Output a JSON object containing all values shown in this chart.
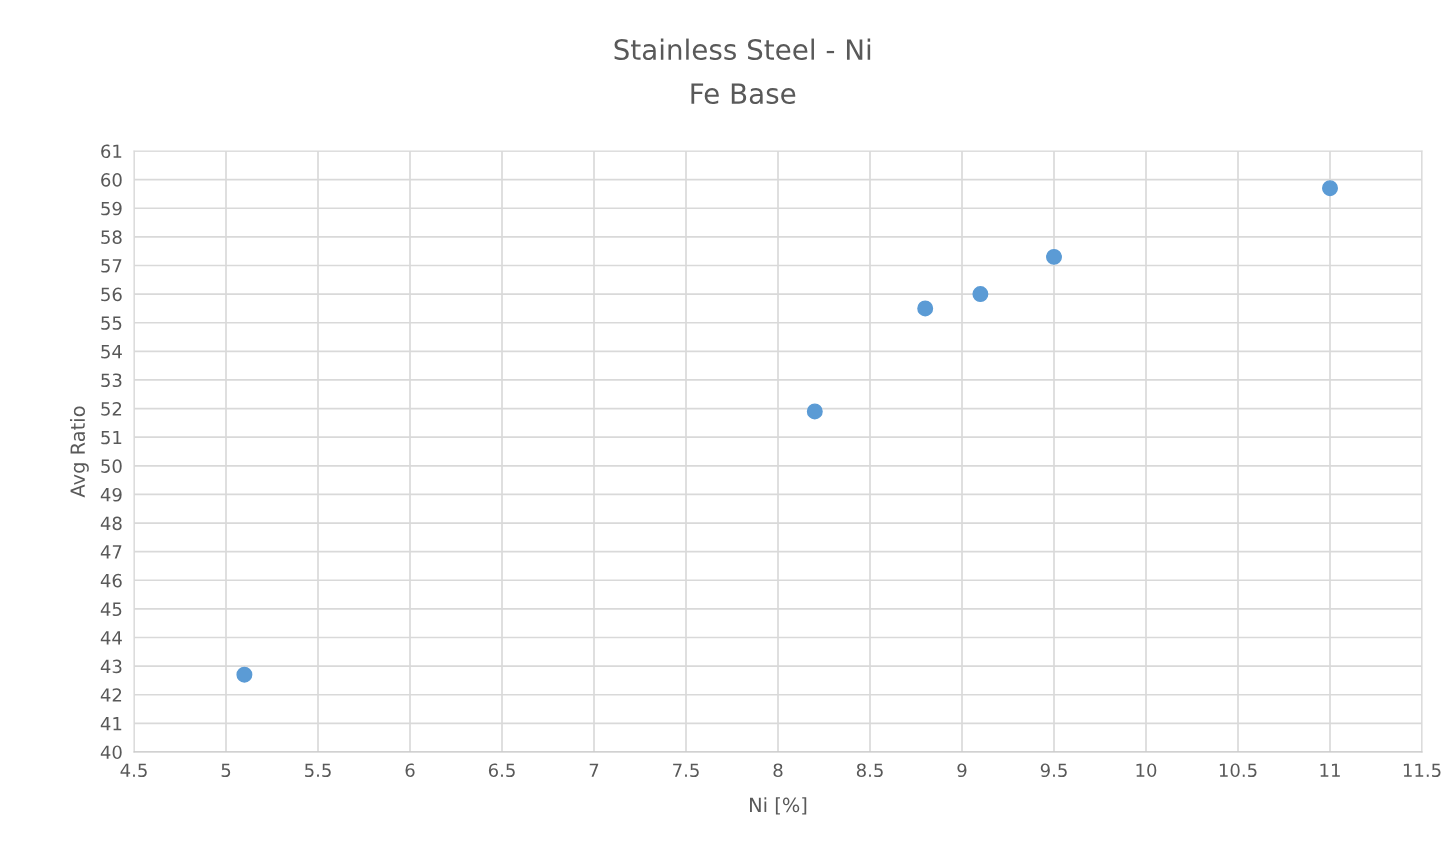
{
  "chart_data": {
    "type": "scatter",
    "title": "Stainless Steel - Ni",
    "subtitle": "Fe Base",
    "xlabel": "Ni [%]",
    "ylabel": "Avg Ratio",
    "series": [
      {
        "color": "#5b9bd5",
        "x": [
          5.1,
          8.2,
          8.8,
          9.1,
          9.5,
          11.0
        ],
        "values": [
          42.7,
          51.9,
          55.5,
          56.0,
          57.3,
          59.7
        ]
      }
    ],
    "xlim": [
      4.5,
      11.5
    ],
    "xticks": [
      4.5,
      5,
      5.5,
      6,
      6.5,
      7,
      7.5,
      8,
      8.5,
      9,
      9.5,
      10,
      10.5,
      11,
      11.5
    ],
    "ylim": [
      40,
      61
    ],
    "yticks": [
      40,
      41,
      42,
      43,
      44,
      45,
      46,
      47,
      48,
      49,
      50,
      51,
      52,
      53,
      54,
      55,
      56,
      57,
      58,
      59,
      60,
      61
    ],
    "grid": true,
    "marker": "circle"
  }
}
